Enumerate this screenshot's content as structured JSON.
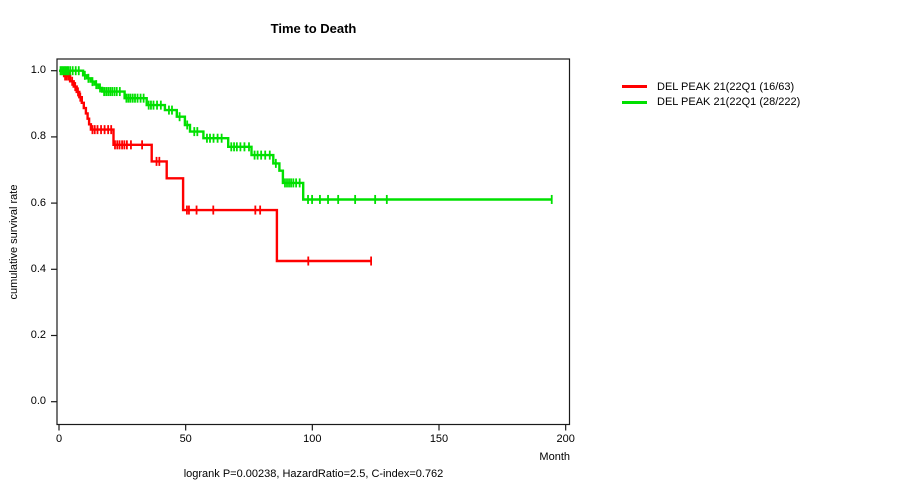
{
  "chart_data": {
    "type": "line",
    "subtype": "kaplan-meier-step",
    "title": "Time to Death",
    "xlabel": "Month",
    "ylabel": "cumulative survival rate",
    "annotation": "logrank P=0.00238, HazardRatio=2.5, C-index=0.762",
    "xlim": [
      0,
      200
    ],
    "ylim": [
      0.0,
      1.0
    ],
    "xticks": [
      "0",
      "50",
      "100",
      "150",
      "200"
    ],
    "xtick_values": [
      0,
      50,
      100,
      150,
      200
    ],
    "yticks": [
      "1.0",
      "0.8",
      "0.6",
      "0.4",
      "0.2",
      "0.0"
    ],
    "ytick_values": [
      1.0,
      0.8,
      0.6,
      0.4,
      0.2,
      0.0
    ],
    "grid": false,
    "legend_position": "right-outside",
    "series": [
      {
        "name": "DEL PEAK 21(22Q1 (16/63)",
        "color": "#ff0000",
        "end_month": 123.2,
        "steps": [
          [
            0,
            1.0
          ],
          [
            2,
            0.984
          ],
          [
            4.4,
            0.968
          ],
          [
            5.8,
            0.952
          ],
          [
            7,
            0.936
          ],
          [
            8,
            0.92
          ],
          [
            9,
            0.903
          ],
          [
            9.8,
            0.887
          ],
          [
            10.6,
            0.871
          ],
          [
            11.3,
            0.855
          ],
          [
            11.9,
            0.838
          ],
          [
            12.6,
            0.822
          ],
          [
            21.5,
            0.776
          ],
          [
            36.6,
            0.726
          ],
          [
            42.5,
            0.675
          ],
          [
            49,
            0.579
          ],
          [
            86,
            0.425
          ]
        ],
        "censors": [
          [
            2.4,
            0.984
          ],
          [
            3.1,
            0.984
          ],
          [
            3.8,
            0.984
          ],
          [
            5.2,
            0.968
          ],
          [
            6.4,
            0.952
          ],
          [
            7.5,
            0.936
          ],
          [
            8.4,
            0.92
          ],
          [
            13.2,
            0.822
          ],
          [
            14.1,
            0.822
          ],
          [
            15.2,
            0.822
          ],
          [
            16.6,
            0.822
          ],
          [
            18,
            0.822
          ],
          [
            19.4,
            0.822
          ],
          [
            20.6,
            0.822
          ],
          [
            22.1,
            0.776
          ],
          [
            23,
            0.776
          ],
          [
            23.9,
            0.776
          ],
          [
            24.9,
            0.776
          ],
          [
            25.8,
            0.776
          ],
          [
            26.8,
            0.776
          ],
          [
            28.4,
            0.776
          ],
          [
            32.8,
            0.776
          ],
          [
            38.5,
            0.726
          ],
          [
            39.6,
            0.726
          ],
          [
            50.5,
            0.579
          ],
          [
            51.3,
            0.579
          ],
          [
            54.3,
            0.579
          ],
          [
            60.9,
            0.579
          ],
          [
            77.5,
            0.579
          ],
          [
            79.4,
            0.579
          ],
          [
            98.4,
            0.425
          ],
          [
            123.2,
            0.425
          ]
        ]
      },
      {
        "name": "DEL PEAK 21(22Q1 (28/222)",
        "color": "#00e000",
        "end_month": 194.5,
        "steps": [
          [
            0,
            1.0
          ],
          [
            9.5,
            0.986
          ],
          [
            11,
            0.977
          ],
          [
            12.5,
            0.967
          ],
          [
            14,
            0.958
          ],
          [
            15.5,
            0.948
          ],
          [
            17,
            0.937
          ],
          [
            25.9,
            0.917
          ],
          [
            34.6,
            0.896
          ],
          [
            41.8,
            0.881
          ],
          [
            46.5,
            0.861
          ],
          [
            49.7,
            0.836
          ],
          [
            51.7,
            0.816
          ],
          [
            57,
            0.796
          ],
          [
            66.8,
            0.77
          ],
          [
            76,
            0.745
          ],
          [
            84.6,
            0.72
          ],
          [
            87,
            0.698
          ],
          [
            88.4,
            0.661
          ],
          [
            96.4,
            0.611
          ]
        ],
        "censors": [
          [
            0.6,
            1
          ],
          [
            1.2,
            1
          ],
          [
            1.8,
            1
          ],
          [
            2.4,
            1
          ],
          [
            3,
            1
          ],
          [
            3.6,
            1
          ],
          [
            4.4,
            1
          ],
          [
            5.4,
            1
          ],
          [
            6.6,
            1
          ],
          [
            7.8,
            1
          ],
          [
            10.2,
            0.986
          ],
          [
            11.6,
            0.977
          ],
          [
            13.2,
            0.967
          ],
          [
            14.7,
            0.958
          ],
          [
            16.2,
            0.948
          ],
          [
            17.8,
            0.937
          ],
          [
            18.6,
            0.937
          ],
          [
            19.4,
            0.937
          ],
          [
            20.2,
            0.937
          ],
          [
            21,
            0.937
          ],
          [
            21.9,
            0.937
          ],
          [
            22.8,
            0.937
          ],
          [
            24,
            0.937
          ],
          [
            26.6,
            0.917
          ],
          [
            27.4,
            0.917
          ],
          [
            28.2,
            0.917
          ],
          [
            29.1,
            0.917
          ],
          [
            30,
            0.917
          ],
          [
            31,
            0.917
          ],
          [
            32.2,
            0.917
          ],
          [
            33.4,
            0.917
          ],
          [
            35.4,
            0.896
          ],
          [
            36.3,
            0.896
          ],
          [
            37.3,
            0.896
          ],
          [
            38.7,
            0.896
          ],
          [
            40.2,
            0.896
          ],
          [
            43.4,
            0.881
          ],
          [
            44.6,
            0.881
          ],
          [
            47.6,
            0.861
          ],
          [
            50.6,
            0.836
          ],
          [
            53.4,
            0.816
          ],
          [
            54.6,
            0.816
          ],
          [
            58.4,
            0.796
          ],
          [
            59.6,
            0.796
          ],
          [
            61,
            0.796
          ],
          [
            62.6,
            0.796
          ],
          [
            64.2,
            0.796
          ],
          [
            68,
            0.77
          ],
          [
            69.1,
            0.77
          ],
          [
            70.2,
            0.77
          ],
          [
            71.6,
            0.77
          ],
          [
            73.2,
            0.77
          ],
          [
            75,
            0.77
          ],
          [
            77.2,
            0.745
          ],
          [
            78.4,
            0.745
          ],
          [
            79.8,
            0.745
          ],
          [
            81.4,
            0.745
          ],
          [
            83.2,
            0.745
          ],
          [
            85.6,
            0.72
          ],
          [
            89.2,
            0.661
          ],
          [
            90,
            0.661
          ],
          [
            90.8,
            0.661
          ],
          [
            91.6,
            0.661
          ],
          [
            92.5,
            0.661
          ],
          [
            93.6,
            0.661
          ],
          [
            95,
            0.661
          ],
          [
            98.3,
            0.611
          ],
          [
            99.9,
            0.611
          ],
          [
            103,
            0.611
          ],
          [
            106.2,
            0.611
          ],
          [
            110.2,
            0.611
          ],
          [
            116.9,
            0.611
          ],
          [
            124.8,
            0.611
          ],
          [
            129.4,
            0.611
          ],
          [
            194.5,
            0.611
          ]
        ]
      }
    ]
  }
}
